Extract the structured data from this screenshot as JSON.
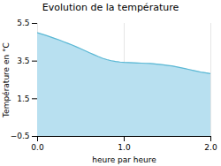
{
  "chart_data": {
    "type": "area",
    "title": "Evolution de la température",
    "xlabel": "heure par heure",
    "ylabel": "Température en °C",
    "x": [
      0,
      0.05,
      0.1,
      0.15,
      0.2,
      0.25,
      0.3,
      0.35,
      0.4,
      0.45,
      0.5,
      0.55,
      0.6,
      0.65,
      0.7,
      0.75,
      0.8,
      0.85,
      0.9,
      0.95,
      1.0,
      1.05,
      1.1,
      1.15,
      1.2,
      1.25,
      1.3,
      1.35,
      1.4,
      1.45,
      1.5,
      1.55,
      1.6,
      1.65,
      1.7,
      1.75,
      1.8,
      1.85,
      1.9,
      1.95,
      2.0
    ],
    "values": [
      5.0,
      4.93,
      4.86,
      4.78,
      4.7,
      4.62,
      4.53,
      4.44,
      4.35,
      4.25,
      4.15,
      4.05,
      3.94,
      3.84,
      3.74,
      3.65,
      3.58,
      3.52,
      3.48,
      3.45,
      3.43,
      3.42,
      3.41,
      3.4,
      3.39,
      3.38,
      3.37,
      3.35,
      3.33,
      3.3,
      3.27,
      3.24,
      3.2,
      3.15,
      3.1,
      3.05,
      3.0,
      2.95,
      2.9,
      2.87,
      2.83
    ],
    "colors": [
      "#b8e0f0",
      "#5bb8d4"
    ],
    "xlim": [
      0,
      2
    ],
    "ylim": [
      -0.5,
      5.5
    ],
    "xticks": [
      0,
      1,
      2
    ],
    "yticks": [
      -0.5,
      1.5,
      3.5,
      5.5
    ],
    "grid": true
  }
}
